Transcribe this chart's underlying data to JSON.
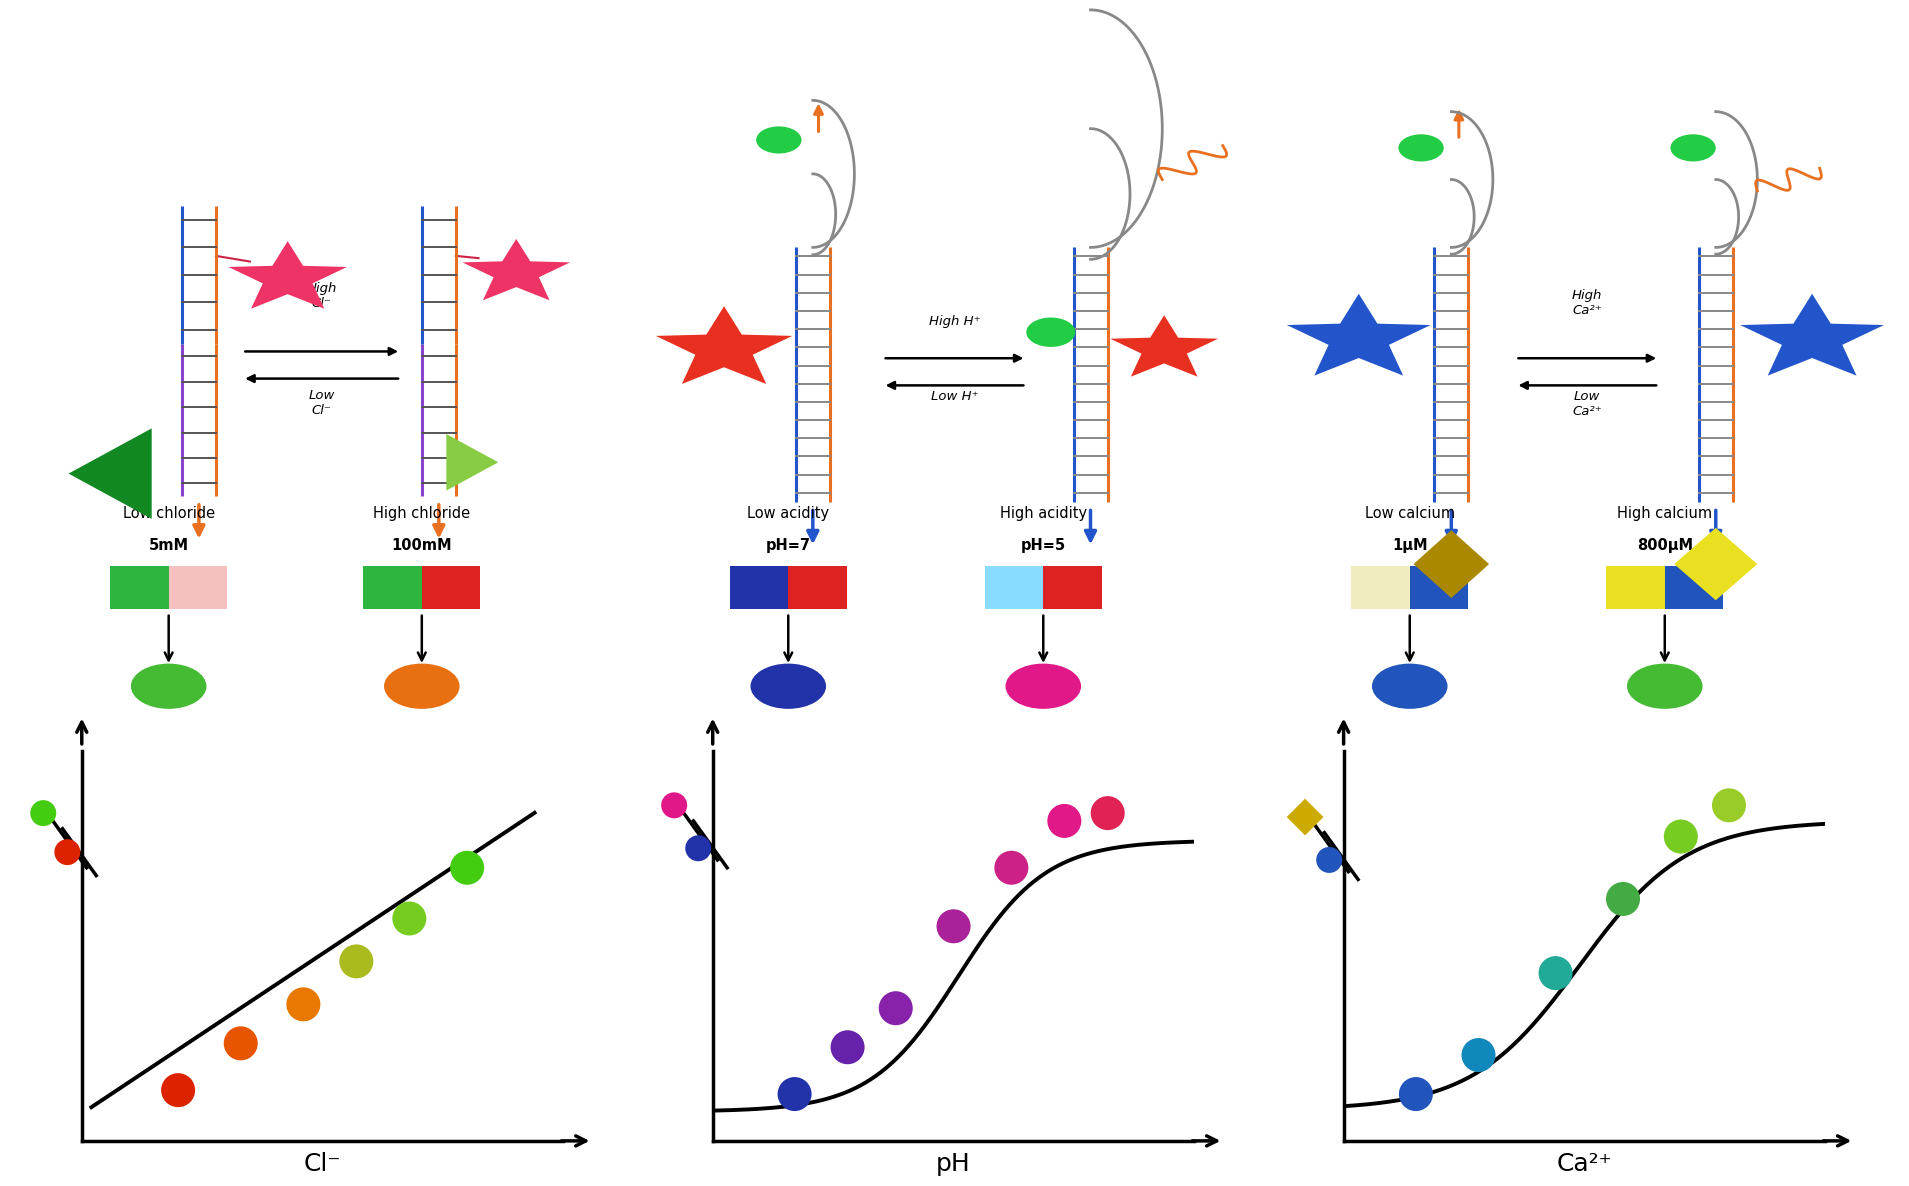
{
  "background_color": "#ffffff",
  "fig_width": 18.89,
  "fig_height": 11.31,
  "panel_labels": {
    "chloride_low": [
      "Low chloride",
      "5mM"
    ],
    "chloride_high": [
      "High chloride",
      "100mM"
    ],
    "acidity_low": [
      "Low acidity",
      "pH=7"
    ],
    "acidity_high": [
      "High acidity",
      "pH=5"
    ],
    "calcium_low": [
      "Low calcium",
      "1μM"
    ],
    "calcium_high": [
      "High calcium",
      "800μM"
    ]
  },
  "xlabel_chloride": "Cl⁻",
  "xlabel_ph": "pH",
  "xlabel_calcium": "Ca²⁺",
  "cl_bar_low": [
    "#2db540",
    "#f5c0c0"
  ],
  "cl_bar_high": [
    "#2db540",
    "#dd2222"
  ],
  "ph_bar_low": [
    "#2233aa",
    "#dd2222"
  ],
  "ph_bar_high": [
    "#88ddff",
    "#dd2222"
  ],
  "ca_bar_low": [
    "#f0ecc0",
    "#2255bb"
  ],
  "ca_bar_high": [
    "#e8e020",
    "#2255bb"
  ],
  "cl_dot_low": "#44bb33",
  "cl_dot_high": "#e87010",
  "ph_dot_low": "#2233aa",
  "ph_dot_high": "#e01888",
  "ca_dot_low": "#2255bb",
  "ca_dot_high": "#44bb33",
  "cl_scatter_colors": [
    "#dd2200",
    "#e85500",
    "#e87800",
    "#aabb20",
    "#77cc20",
    "#44cc10"
  ],
  "cl_scatter_x": [
    0.2,
    0.33,
    0.46,
    0.57,
    0.68,
    0.8
  ],
  "cl_scatter_y": [
    0.13,
    0.25,
    0.35,
    0.46,
    0.57,
    0.7
  ],
  "cl_legend_green_color": "#44cc10",
  "cl_legend_red_color": "#dd2200",
  "ph_scatter_colors": [
    "#2233aa",
    "#6622aa",
    "#8822aa",
    "#aa2299",
    "#cc2288",
    "#e01888",
    "#e02255"
  ],
  "ph_scatter_x": [
    0.17,
    0.28,
    0.38,
    0.5,
    0.62,
    0.73,
    0.82
  ],
  "ph_scatter_y": [
    0.12,
    0.24,
    0.34,
    0.55,
    0.7,
    0.82,
    0.84
  ],
  "ph_legend_pink_color": "#e01888",
  "ph_legend_blue_color": "#2233aa",
  "ca_scatter_colors": [
    "#2255bb",
    "#1188bb",
    "#22aa99",
    "#44aa44",
    "#77cc22",
    "#99cc28"
  ],
  "ca_scatter_x": [
    0.15,
    0.28,
    0.44,
    0.58,
    0.7,
    0.8
  ],
  "ca_scatter_y": [
    0.12,
    0.22,
    0.43,
    0.62,
    0.78,
    0.86
  ],
  "ca_legend_yellow_color": "#ccaa00",
  "ca_legend_blue_color": "#2255bb"
}
